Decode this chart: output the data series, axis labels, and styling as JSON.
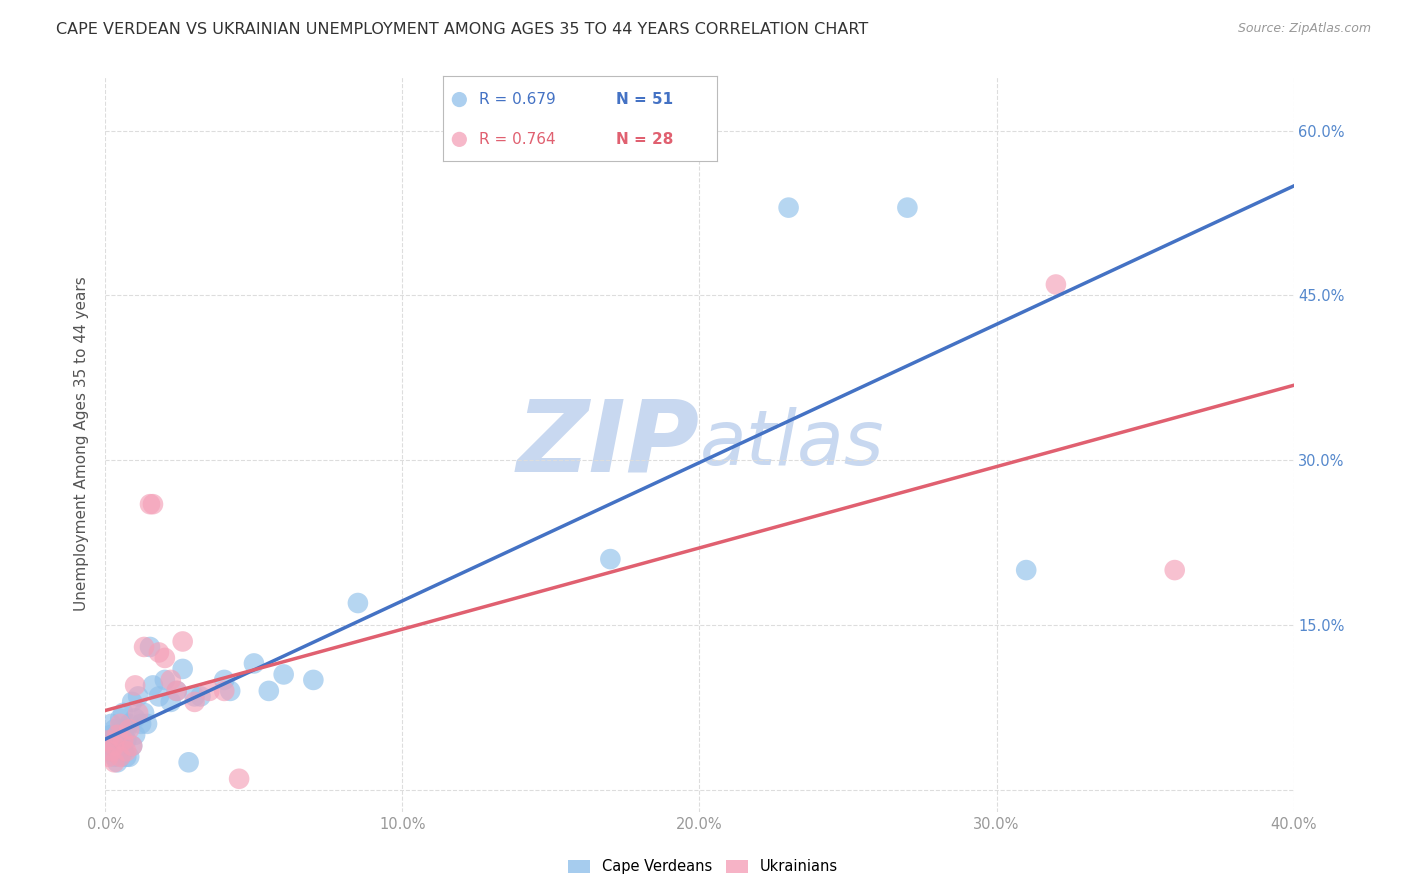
{
  "title": "CAPE VERDEAN VS UKRAINIAN UNEMPLOYMENT AMONG AGES 35 TO 44 YEARS CORRELATION CHART",
  "source": "Source: ZipAtlas.com",
  "ylabel": "Unemployment Among Ages 35 to 44 years",
  "xlim": [
    0.0,
    0.4
  ],
  "ylim": [
    -0.02,
    0.65
  ],
  "xticks": [
    0.0,
    0.1,
    0.2,
    0.3,
    0.4
  ],
  "yticks": [
    0.0,
    0.15,
    0.3,
    0.45,
    0.6
  ],
  "xticklabels": [
    "0.0%",
    "10.0%",
    "20.0%",
    "30.0%",
    "40.0%"
  ],
  "right_yticklabels": [
    "60.0%",
    "45.0%",
    "30.0%",
    "15.0%"
  ],
  "blue_color": "#90C0EA",
  "pink_color": "#F4A0B8",
  "blue_line_color": "#4472C4",
  "pink_line_color": "#E06070",
  "legend_blue_r": "R = 0.679",
  "legend_blue_n": "N = 51",
  "legend_pink_r": "R = 0.764",
  "legend_pink_n": "N = 28",
  "watermark_zip": "ZIP",
  "watermark_atlas": "atlas",
  "watermark_color_zip": "#C8D8F0",
  "watermark_color_atlas": "#C8D8F0",
  "cape_verdean_x": [
    0.001,
    0.001,
    0.002,
    0.002,
    0.002,
    0.003,
    0.003,
    0.003,
    0.004,
    0.004,
    0.004,
    0.005,
    0.005,
    0.005,
    0.006,
    0.006,
    0.006,
    0.007,
    0.007,
    0.007,
    0.008,
    0.008,
    0.009,
    0.009,
    0.01,
    0.01,
    0.011,
    0.012,
    0.013,
    0.014,
    0.015,
    0.016,
    0.018,
    0.02,
    0.022,
    0.024,
    0.026,
    0.028,
    0.03,
    0.032,
    0.04,
    0.042,
    0.05,
    0.055,
    0.06,
    0.07,
    0.085,
    0.17,
    0.23,
    0.27,
    0.31
  ],
  "cape_verdean_y": [
    0.035,
    0.045,
    0.04,
    0.05,
    0.06,
    0.03,
    0.045,
    0.055,
    0.035,
    0.025,
    0.05,
    0.04,
    0.065,
    0.03,
    0.055,
    0.035,
    0.07,
    0.055,
    0.03,
    0.045,
    0.06,
    0.03,
    0.04,
    0.08,
    0.065,
    0.05,
    0.085,
    0.06,
    0.07,
    0.06,
    0.13,
    0.095,
    0.085,
    0.1,
    0.08,
    0.09,
    0.11,
    0.025,
    0.085,
    0.085,
    0.1,
    0.09,
    0.115,
    0.09,
    0.105,
    0.1,
    0.17,
    0.21,
    0.53,
    0.53,
    0.2
  ],
  "ukrainian_x": [
    0.001,
    0.001,
    0.002,
    0.003,
    0.003,
    0.004,
    0.005,
    0.005,
    0.006,
    0.007,
    0.008,
    0.009,
    0.01,
    0.011,
    0.013,
    0.015,
    0.016,
    0.018,
    0.02,
    0.022,
    0.024,
    0.026,
    0.03,
    0.035,
    0.04,
    0.045,
    0.32,
    0.36
  ],
  "ukrainian_y": [
    0.03,
    0.045,
    0.035,
    0.025,
    0.04,
    0.05,
    0.03,
    0.06,
    0.045,
    0.035,
    0.055,
    0.04,
    0.095,
    0.07,
    0.13,
    0.26,
    0.26,
    0.125,
    0.12,
    0.1,
    0.09,
    0.135,
    0.08,
    0.09,
    0.09,
    0.01,
    0.46,
    0.2
  ],
  "grid_color": "#DDDDDD",
  "background_color": "#FFFFFF",
  "title_fontsize": 11.5,
  "axis_label_fontsize": 11,
  "tick_fontsize": 10.5,
  "legend_fontsize": 11
}
